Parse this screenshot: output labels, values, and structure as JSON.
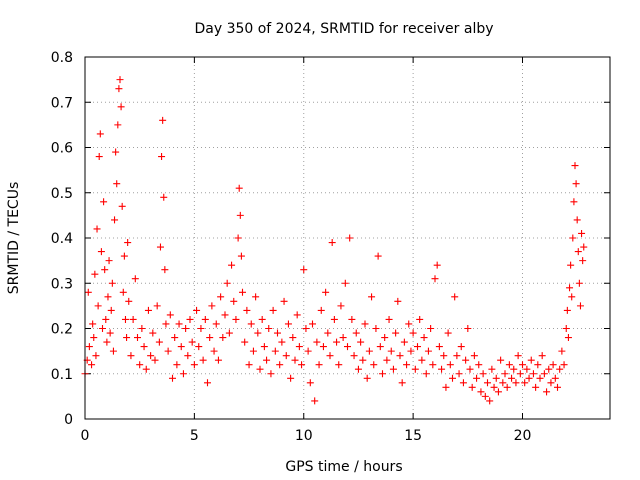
{
  "chart_data": {
    "type": "scatter",
    "title": "Day 350 of 2024, SRMTID for receiver alby",
    "xlabel": "GPS time / hours",
    "ylabel": "SRMTID / TECUs",
    "xlim": [
      0,
      24
    ],
    "ylim": [
      0,
      0.8
    ],
    "xticks": [
      "0",
      "5",
      "10",
      "15",
      "20"
    ],
    "xtick_values": [
      0,
      5,
      10,
      15,
      20
    ],
    "yticks": [
      "0",
      "0.1",
      "0.2",
      "0.3",
      "0.4",
      "0.5",
      "0.6",
      "0.7",
      "0.8"
    ],
    "ytick_values": [
      0,
      0.1,
      0.2,
      0.3,
      0.4,
      0.5,
      0.6,
      0.7,
      0.8
    ],
    "grid": true,
    "marker": "+",
    "marker_color": "#ff0000",
    "series": [
      {
        "name": "SRMTID",
        "points": [
          [
            0.0,
            0.1
          ],
          [
            0.1,
            0.13
          ],
          [
            0.15,
            0.28
          ],
          [
            0.2,
            0.16
          ],
          [
            0.3,
            0.12
          ],
          [
            0.35,
            0.21
          ],
          [
            0.4,
            0.18
          ],
          [
            0.45,
            0.32
          ],
          [
            0.5,
            0.14
          ],
          [
            0.55,
            0.42
          ],
          [
            0.6,
            0.25
          ],
          [
            0.65,
            0.58
          ],
          [
            0.7,
            0.63
          ],
          [
            0.75,
            0.37
          ],
          [
            0.8,
            0.2
          ],
          [
            0.85,
            0.48
          ],
          [
            0.9,
            0.33
          ],
          [
            0.95,
            0.22
          ],
          [
            1.0,
            0.17
          ],
          [
            1.05,
            0.27
          ],
          [
            1.1,
            0.35
          ],
          [
            1.15,
            0.19
          ],
          [
            1.2,
            0.24
          ],
          [
            1.25,
            0.3
          ],
          [
            1.3,
            0.15
          ],
          [
            1.35,
            0.44
          ],
          [
            1.4,
            0.59
          ],
          [
            1.45,
            0.52
          ],
          [
            1.5,
            0.65
          ],
          [
            1.55,
            0.73
          ],
          [
            1.6,
            0.75
          ],
          [
            1.65,
            0.69
          ],
          [
            1.7,
            0.47
          ],
          [
            1.75,
            0.28
          ],
          [
            1.8,
            0.36
          ],
          [
            1.85,
            0.22
          ],
          [
            1.9,
            0.18
          ],
          [
            1.95,
            0.39
          ],
          [
            2.0,
            0.26
          ],
          [
            2.1,
            0.14
          ],
          [
            2.2,
            0.22
          ],
          [
            2.3,
            0.31
          ],
          [
            2.4,
            0.18
          ],
          [
            2.5,
            0.12
          ],
          [
            2.6,
            0.2
          ],
          [
            2.7,
            0.16
          ],
          [
            2.8,
            0.11
          ],
          [
            2.9,
            0.24
          ],
          [
            3.0,
            0.14
          ],
          [
            3.1,
            0.19
          ],
          [
            3.2,
            0.13
          ],
          [
            3.3,
            0.25
          ],
          [
            3.4,
            0.17
          ],
          [
            3.45,
            0.38
          ],
          [
            3.5,
            0.58
          ],
          [
            3.55,
            0.66
          ],
          [
            3.6,
            0.49
          ],
          [
            3.65,
            0.33
          ],
          [
            3.7,
            0.21
          ],
          [
            3.8,
            0.15
          ],
          [
            3.9,
            0.23
          ],
          [
            4.0,
            0.09
          ],
          [
            4.1,
            0.18
          ],
          [
            4.2,
            0.12
          ],
          [
            4.3,
            0.21
          ],
          [
            4.4,
            0.16
          ],
          [
            4.5,
            0.1
          ],
          [
            4.6,
            0.2
          ],
          [
            4.7,
            0.14
          ],
          [
            4.8,
            0.22
          ],
          [
            4.9,
            0.17
          ],
          [
            5.0,
            0.12
          ],
          [
            5.1,
            0.24
          ],
          [
            5.2,
            0.16
          ],
          [
            5.3,
            0.2
          ],
          [
            5.4,
            0.13
          ],
          [
            5.5,
            0.22
          ],
          [
            5.6,
            0.08
          ],
          [
            5.7,
            0.18
          ],
          [
            5.8,
            0.25
          ],
          [
            5.9,
            0.15
          ],
          [
            6.0,
            0.21
          ],
          [
            6.1,
            0.13
          ],
          [
            6.2,
            0.27
          ],
          [
            6.3,
            0.18
          ],
          [
            6.4,
            0.23
          ],
          [
            6.5,
            0.3
          ],
          [
            6.6,
            0.19
          ],
          [
            6.7,
            0.34
          ],
          [
            6.8,
            0.26
          ],
          [
            6.9,
            0.22
          ],
          [
            7.0,
            0.4
          ],
          [
            7.05,
            0.51
          ],
          [
            7.1,
            0.45
          ],
          [
            7.15,
            0.36
          ],
          [
            7.2,
            0.28
          ],
          [
            7.3,
            0.17
          ],
          [
            7.4,
            0.24
          ],
          [
            7.5,
            0.12
          ],
          [
            7.6,
            0.21
          ],
          [
            7.7,
            0.15
          ],
          [
            7.8,
            0.27
          ],
          [
            7.9,
            0.19
          ],
          [
            8.0,
            0.11
          ],
          [
            8.1,
            0.22
          ],
          [
            8.2,
            0.16
          ],
          [
            8.3,
            0.13
          ],
          [
            8.4,
            0.2
          ],
          [
            8.5,
            0.1
          ],
          [
            8.6,
            0.24
          ],
          [
            8.7,
            0.15
          ],
          [
            8.8,
            0.19
          ],
          [
            8.9,
            0.12
          ],
          [
            9.0,
            0.17
          ],
          [
            9.1,
            0.26
          ],
          [
            9.2,
            0.14
          ],
          [
            9.3,
            0.21
          ],
          [
            9.4,
            0.09
          ],
          [
            9.5,
            0.18
          ],
          [
            9.6,
            0.13
          ],
          [
            9.7,
            0.23
          ],
          [
            9.8,
            0.16
          ],
          [
            9.9,
            0.12
          ],
          [
            10.0,
            0.33
          ],
          [
            10.1,
            0.2
          ],
          [
            10.2,
            0.15
          ],
          [
            10.3,
            0.08
          ],
          [
            10.4,
            0.21
          ],
          [
            10.5,
            0.04
          ],
          [
            10.6,
            0.17
          ],
          [
            10.7,
            0.12
          ],
          [
            10.8,
            0.24
          ],
          [
            10.9,
            0.16
          ],
          [
            11.0,
            0.28
          ],
          [
            11.1,
            0.19
          ],
          [
            11.2,
            0.14
          ],
          [
            11.3,
            0.39
          ],
          [
            11.4,
            0.22
          ],
          [
            11.5,
            0.17
          ],
          [
            11.6,
            0.12
          ],
          [
            11.7,
            0.25
          ],
          [
            11.8,
            0.18
          ],
          [
            11.9,
            0.3
          ],
          [
            12.0,
            0.16
          ],
          [
            12.1,
            0.4
          ],
          [
            12.2,
            0.22
          ],
          [
            12.3,
            0.14
          ],
          [
            12.4,
            0.19
          ],
          [
            12.5,
            0.11
          ],
          [
            12.6,
            0.17
          ],
          [
            12.7,
            0.13
          ],
          [
            12.8,
            0.21
          ],
          [
            12.9,
            0.09
          ],
          [
            13.0,
            0.15
          ],
          [
            13.1,
            0.27
          ],
          [
            13.2,
            0.12
          ],
          [
            13.3,
            0.2
          ],
          [
            13.4,
            0.36
          ],
          [
            13.5,
            0.16
          ],
          [
            13.6,
            0.1
          ],
          [
            13.7,
            0.18
          ],
          [
            13.8,
            0.13
          ],
          [
            13.9,
            0.22
          ],
          [
            14.0,
            0.15
          ],
          [
            14.1,
            0.11
          ],
          [
            14.2,
            0.19
          ],
          [
            14.3,
            0.26
          ],
          [
            14.4,
            0.14
          ],
          [
            14.5,
            0.08
          ],
          [
            14.6,
            0.17
          ],
          [
            14.7,
            0.12
          ],
          [
            14.8,
            0.21
          ],
          [
            14.9,
            0.15
          ],
          [
            15.0,
            0.19
          ],
          [
            15.1,
            0.11
          ],
          [
            15.2,
            0.16
          ],
          [
            15.3,
            0.22
          ],
          [
            15.4,
            0.13
          ],
          [
            15.5,
            0.18
          ],
          [
            15.6,
            0.1
          ],
          [
            15.7,
            0.15
          ],
          [
            15.8,
            0.2
          ],
          [
            15.9,
            0.12
          ],
          [
            16.0,
            0.31
          ],
          [
            16.1,
            0.34
          ],
          [
            16.2,
            0.16
          ],
          [
            16.3,
            0.11
          ],
          [
            16.4,
            0.14
          ],
          [
            16.5,
            0.07
          ],
          [
            16.6,
            0.19
          ],
          [
            16.7,
            0.12
          ],
          [
            16.8,
            0.09
          ],
          [
            16.9,
            0.27
          ],
          [
            17.0,
            0.14
          ],
          [
            17.1,
            0.1
          ],
          [
            17.2,
            0.16
          ],
          [
            17.3,
            0.08
          ],
          [
            17.4,
            0.13
          ],
          [
            17.5,
            0.2
          ],
          [
            17.6,
            0.11
          ],
          [
            17.7,
            0.07
          ],
          [
            17.8,
            0.14
          ],
          [
            17.9,
            0.09
          ],
          [
            18.0,
            0.12
          ],
          [
            18.1,
            0.06
          ],
          [
            18.2,
            0.1
          ],
          [
            18.3,
            0.05
          ],
          [
            18.4,
            0.08
          ],
          [
            18.5,
            0.04
          ],
          [
            18.6,
            0.11
          ],
          [
            18.7,
            0.07
          ],
          [
            18.8,
            0.09
          ],
          [
            18.9,
            0.06
          ],
          [
            19.0,
            0.13
          ],
          [
            19.1,
            0.08
          ],
          [
            19.2,
            0.1
          ],
          [
            19.3,
            0.07
          ],
          [
            19.4,
            0.12
          ],
          [
            19.5,
            0.09
          ],
          [
            19.6,
            0.11
          ],
          [
            19.7,
            0.08
          ],
          [
            19.8,
            0.14
          ],
          [
            19.9,
            0.1
          ],
          [
            20.0,
            0.12
          ],
          [
            20.1,
            0.08
          ],
          [
            20.2,
            0.11
          ],
          [
            20.3,
            0.09
          ],
          [
            20.4,
            0.13
          ],
          [
            20.5,
            0.1
          ],
          [
            20.6,
            0.07
          ],
          [
            20.7,
            0.12
          ],
          [
            20.8,
            0.09
          ],
          [
            20.9,
            0.14
          ],
          [
            21.0,
            0.1
          ],
          [
            21.1,
            0.06
          ],
          [
            21.2,
            0.11
          ],
          [
            21.3,
            0.08
          ],
          [
            21.4,
            0.12
          ],
          [
            21.5,
            0.09
          ],
          [
            21.6,
            0.07
          ],
          [
            21.7,
            0.11
          ],
          [
            21.8,
            0.15
          ],
          [
            21.9,
            0.12
          ],
          [
            22.0,
            0.2
          ],
          [
            22.05,
            0.24
          ],
          [
            22.1,
            0.18
          ],
          [
            22.15,
            0.29
          ],
          [
            22.2,
            0.34
          ],
          [
            22.25,
            0.27
          ],
          [
            22.3,
            0.4
          ],
          [
            22.35,
            0.48
          ],
          [
            22.4,
            0.56
          ],
          [
            22.45,
            0.52
          ],
          [
            22.5,
            0.44
          ],
          [
            22.55,
            0.37
          ],
          [
            22.6,
            0.3
          ],
          [
            22.65,
            0.25
          ],
          [
            22.7,
            0.41
          ],
          [
            22.75,
            0.35
          ],
          [
            22.8,
            0.38
          ]
        ]
      }
    ]
  }
}
